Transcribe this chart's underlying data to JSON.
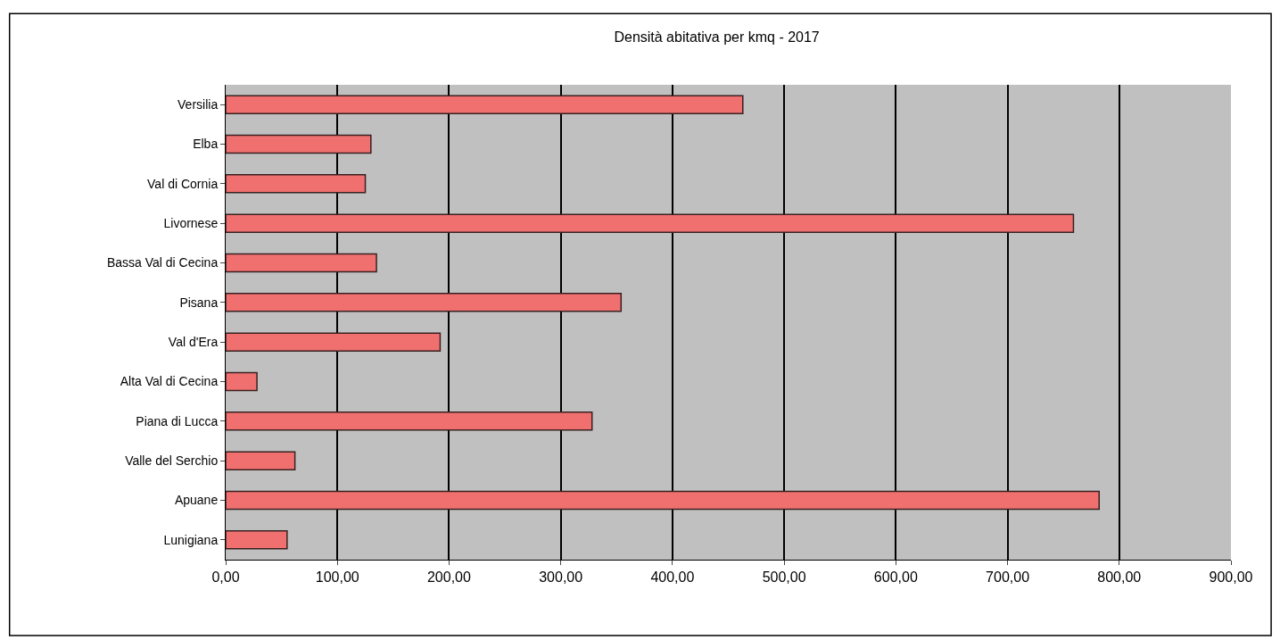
{
  "chart_data": {
    "type": "bar",
    "orientation": "horizontal",
    "title": "Densità abitativa per kmq - 2017",
    "categories": [
      "Versilia",
      "Elba",
      "Val di Cornia",
      "Livornese",
      "Bassa Val di Cecina",
      "Pisana",
      "Val d'Era",
      "Alta Val di Cecina",
      "Piana di Lucca",
      "Valle del Serchio",
      "Apuane",
      "Lunigiana"
    ],
    "values": [
      463,
      130,
      125,
      759,
      135,
      354,
      192,
      28,
      328,
      62,
      782,
      55
    ],
    "color": "#f07070",
    "xlim": [
      0,
      900
    ],
    "xticks": [
      {
        "value": 0,
        "label": "0,00"
      },
      {
        "value": 100,
        "label": "100,00"
      },
      {
        "value": 200,
        "label": "200,00"
      },
      {
        "value": 300,
        "label": "300,00"
      },
      {
        "value": 400,
        "label": "400,00"
      },
      {
        "value": 500,
        "label": "500,00"
      },
      {
        "value": 600,
        "label": "600,00"
      },
      {
        "value": 700,
        "label": "700,00"
      },
      {
        "value": 800,
        "label": "800,00"
      },
      {
        "value": 900,
        "label": "900,00"
      }
    ],
    "grid": "x"
  }
}
